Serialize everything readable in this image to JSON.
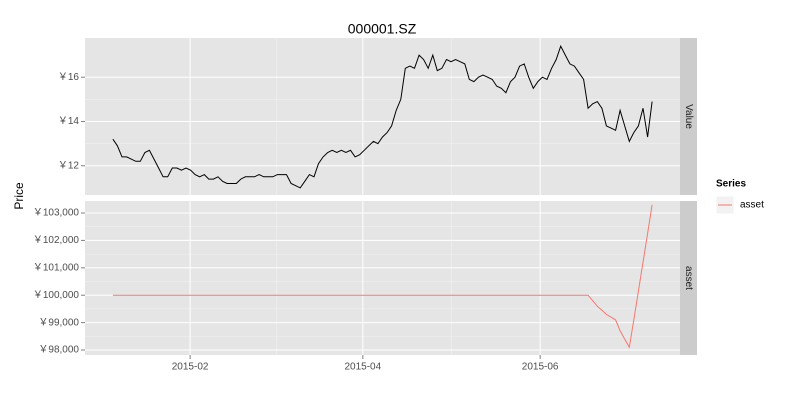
{
  "chart_data": {
    "type": "line",
    "title": "000001.SZ",
    "y_label": "Price",
    "legend_title": "Series",
    "xlim": [
      -6.1,
      124.1
    ],
    "xticks": [
      {
        "value": 16.9,
        "label": "2015-02"
      },
      {
        "value": 54.7,
        "label": "2015-04"
      },
      {
        "value": 93.5,
        "label": "2015-06"
      }
    ],
    "facets": [
      {
        "strip": "Value",
        "ylim": [
          10.68,
          17.77
        ],
        "yticks": [
          {
            "value": 12,
            "label": "￥12"
          },
          {
            "value": 14,
            "label": "￥14"
          },
          {
            "value": 16,
            "label": "￥16"
          }
        ],
        "series": [
          {
            "color": "#000000",
            "values": [
              13.2,
              12.9,
              12.4,
              12.4,
              12.3,
              12.2,
              12.2,
              12.6,
              12.7,
              12.3,
              11.9,
              11.5,
              11.5,
              11.9,
              11.9,
              11.8,
              11.9,
              11.8,
              11.6,
              11.5,
              11.6,
              11.4,
              11.4,
              11.5,
              11.3,
              11.2,
              11.2,
              11.2,
              11.4,
              11.5,
              11.5,
              11.5,
              11.6,
              11.5,
              11.5,
              11.5,
              11.6,
              11.6,
              11.6,
              11.2,
              11.1,
              11.0,
              11.3,
              11.6,
              11.5,
              12.1,
              12.4,
              12.6,
              12.7,
              12.6,
              12.7,
              12.6,
              12.7,
              12.4,
              12.5,
              12.7,
              12.9,
              13.1,
              13.0,
              13.3,
              13.5,
              13.8,
              14.5,
              15.0,
              16.4,
              16.5,
              16.4,
              17.0,
              16.8,
              16.4,
              17.0,
              16.3,
              16.4,
              16.8,
              16.7,
              16.8,
              16.7,
              16.6,
              15.9,
              15.8,
              16.0,
              16.1,
              16.0,
              15.9,
              15.6,
              15.5,
              15.3,
              15.8,
              16.0,
              16.5,
              16.6,
              16.0,
              15.5,
              15.8,
              16.0,
              15.9,
              16.4,
              16.8,
              17.4,
              17.0,
              16.6,
              16.5,
              16.2,
              15.9,
              14.6,
              14.8,
              14.9,
              14.6,
              13.8,
              13.7,
              13.6,
              14.5,
              13.8,
              13.1,
              13.5,
              13.8,
              14.6,
              13.3,
              14.9
            ]
          }
        ]
      },
      {
        "strip": "asset",
        "ylim": [
          97818,
          103438
        ],
        "yticks": [
          {
            "value": 98000,
            "label": "￥98,000"
          },
          {
            "value": 99000,
            "label": "￥99,000"
          },
          {
            "value": 100000,
            "label": "￥100,000"
          },
          {
            "value": 101000,
            "label": "￥101,000"
          },
          {
            "value": 102000,
            "label": "￥102,000"
          },
          {
            "value": 103000,
            "label": "￥103,000"
          }
        ],
        "series": [
          {
            "name": "asset",
            "color": "#f8766d",
            "values": [
              100000,
              100000,
              100000,
              100000,
              100000,
              100000,
              100000,
              100000,
              100000,
              100000,
              100000,
              100000,
              100000,
              100000,
              100000,
              100000,
              100000,
              100000,
              100000,
              100000,
              100000,
              100000,
              100000,
              100000,
              100000,
              100000,
              100000,
              100000,
              100000,
              100000,
              100000,
              100000,
              100000,
              100000,
              100000,
              100000,
              100000,
              100000,
              100000,
              100000,
              100000,
              100000,
              100000,
              100000,
              100000,
              100000,
              100000,
              100000,
              100000,
              100000,
              100000,
              100000,
              100000,
              100000,
              100000,
              100000,
              100000,
              100000,
              100000,
              100000,
              100000,
              100000,
              100000,
              100000,
              100000,
              100000,
              100000,
              100000,
              100000,
              100000,
              100000,
              100000,
              100000,
              100000,
              100000,
              100000,
              100000,
              100000,
              100000,
              100000,
              100000,
              100000,
              100000,
              100000,
              100000,
              100000,
              100000,
              100000,
              100000,
              100000,
              100000,
              100000,
              100000,
              100000,
              100000,
              100000,
              100000,
              100000,
              100000,
              100000,
              100000,
              100000,
              100000,
              100000,
              100000,
              99800,
              99600,
              99450,
              99300,
              99200,
              99100,
              98700,
              98400,
              98100,
              99100,
              100150,
              101200,
              102250,
              103300
            ]
          }
        ]
      }
    ]
  }
}
